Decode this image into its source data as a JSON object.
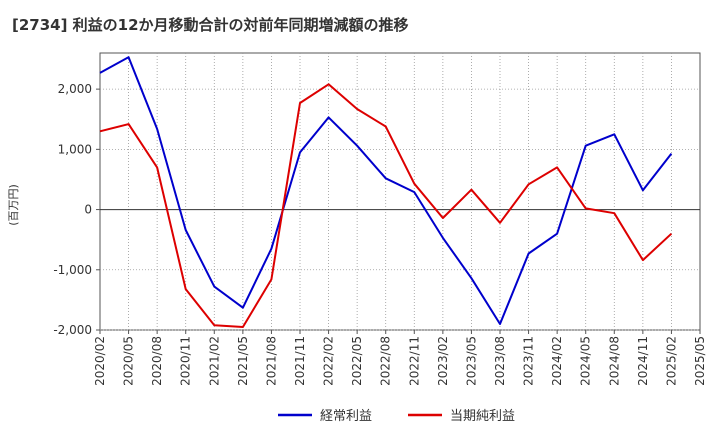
{
  "chart_data": {
    "type": "line",
    "title": "[2734]  利益の12か月移動合計の対前年同期増減額の推移",
    "ylabel": "(百万円)",
    "xlabel": "",
    "ylim": [
      -2000,
      2600
    ],
    "yticks": [
      -2000,
      -1000,
      0,
      1000,
      2000
    ],
    "ytick_labels": [
      "-2,000",
      "-1,000",
      "0",
      "1,000",
      "2,000"
    ],
    "categories": [
      "2020/02",
      "2020/05",
      "2020/08",
      "2020/11",
      "2021/02",
      "2021/05",
      "2021/08",
      "2021/11",
      "2022/02",
      "2022/05",
      "2022/08",
      "2022/11",
      "2023/02",
      "2023/05",
      "2023/08",
      "2023/11",
      "2024/02",
      "2024/05",
      "2024/08",
      "2024/11",
      "2025/02",
      "2025/05"
    ],
    "series": [
      {
        "name": "経常利益",
        "color": "#0000cc",
        "values": [
          2270,
          2530,
          1340,
          -340,
          -1280,
          -1630,
          -650,
          950,
          1530,
          1060,
          520,
          290,
          -470,
          -1140,
          -1900,
          -730,
          -400,
          1060,
          1250,
          320,
          930,
          null
        ]
      },
      {
        "name": "当期純利益",
        "color": "#dd0000",
        "values": [
          1300,
          1420,
          700,
          -1320,
          -1920,
          -1950,
          -1160,
          1770,
          2080,
          1670,
          1380,
          430,
          -140,
          330,
          -220,
          420,
          700,
          20,
          -60,
          -840,
          -400,
          null
        ]
      }
    ],
    "grid": true,
    "legend_position": "bottom-center"
  }
}
